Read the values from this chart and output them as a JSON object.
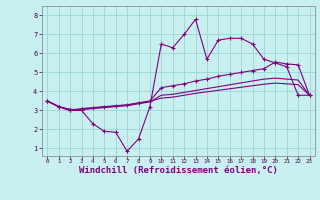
{
  "background_color": "#c8f0f0",
  "grid_color": "#a0d8d8",
  "line_color": "#800080",
  "xlabel": "Windchill (Refroidissement éolien,°C)",
  "xlabel_fontsize": 6.5,
  "xtick_labels": [
    "0",
    "1",
    "2",
    "3",
    "4",
    "5",
    "6",
    "7",
    "8",
    "9",
    "10",
    "11",
    "12",
    "13",
    "14",
    "15",
    "16",
    "17",
    "18",
    "19",
    "20",
    "21",
    "22",
    "23"
  ],
  "ytick_labels": [
    "1",
    "2",
    "3",
    "4",
    "5",
    "6",
    "7",
    "8"
  ],
  "ylim": [
    0.6,
    8.5
  ],
  "xlim": [
    -0.5,
    23.5
  ],
  "series1_x": [
    0,
    1,
    2,
    3,
    4,
    5,
    6,
    7,
    8,
    9,
    10,
    11,
    12,
    13,
    14,
    15,
    16,
    17,
    18,
    19,
    20,
    21,
    22,
    23
  ],
  "series1_y": [
    3.5,
    3.2,
    3.0,
    3.0,
    2.3,
    1.9,
    1.85,
    0.85,
    1.5,
    3.2,
    6.5,
    6.3,
    7.0,
    7.8,
    5.7,
    6.7,
    6.8,
    6.8,
    6.5,
    5.7,
    5.5,
    5.3,
    3.8,
    3.8
  ],
  "series2_x": [
    0,
    1,
    2,
    3,
    4,
    5,
    6,
    7,
    8,
    9,
    10,
    11,
    12,
    13,
    14,
    15,
    16,
    17,
    18,
    19,
    20,
    21,
    22,
    23
  ],
  "series2_y": [
    3.5,
    3.2,
    3.0,
    3.1,
    3.15,
    3.2,
    3.25,
    3.3,
    3.4,
    3.5,
    4.2,
    4.3,
    4.4,
    4.55,
    4.65,
    4.8,
    4.9,
    5.0,
    5.1,
    5.2,
    5.55,
    5.45,
    5.4,
    3.8
  ],
  "series3_x": [
    0,
    1,
    2,
    3,
    4,
    5,
    6,
    7,
    8,
    9,
    10,
    11,
    12,
    13,
    14,
    15,
    16,
    17,
    18,
    19,
    20,
    21,
    22,
    23
  ],
  "series3_y": [
    3.5,
    3.2,
    3.05,
    3.05,
    3.1,
    3.15,
    3.2,
    3.25,
    3.35,
    3.45,
    3.8,
    3.85,
    3.95,
    4.05,
    4.15,
    4.25,
    4.35,
    4.45,
    4.55,
    4.65,
    4.7,
    4.65,
    4.6,
    3.8
  ],
  "series4_x": [
    0,
    1,
    2,
    3,
    4,
    5,
    6,
    7,
    8,
    9,
    10,
    11,
    12,
    13,
    14,
    15,
    16,
    17,
    18,
    19,
    20,
    21,
    22,
    23
  ],
  "series4_y": [
    3.5,
    3.2,
    3.05,
    3.05,
    3.12,
    3.18,
    3.23,
    3.28,
    3.38,
    3.48,
    3.65,
    3.7,
    3.8,
    3.9,
    3.98,
    4.06,
    4.14,
    4.22,
    4.3,
    4.38,
    4.44,
    4.4,
    4.36,
    3.8
  ]
}
